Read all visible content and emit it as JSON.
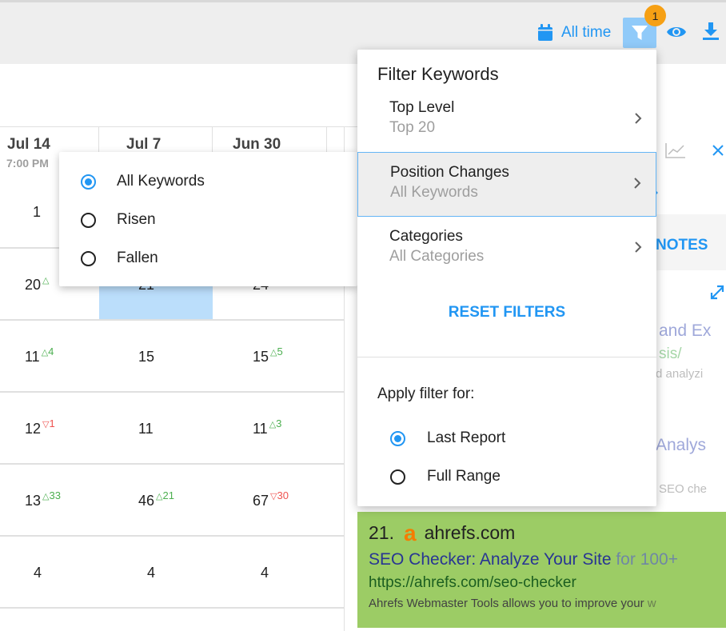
{
  "toolbar": {
    "date_range_label": "All time",
    "filter_badge_count": "1",
    "accent_color": "#2196f3",
    "badge_color": "#f6a014"
  },
  "table": {
    "columns": [
      {
        "date": "Jul 14",
        "time": "7:00 PM"
      },
      {
        "date": "Jul 7",
        "time": ""
      },
      {
        "date": "Jun 30",
        "time": ""
      }
    ],
    "rows": [
      [
        {
          "v": "1"
        },
        {
          "v": ""
        },
        {
          "v": ""
        }
      ],
      [
        {
          "v": "20",
          "chg": "",
          "dir": "up"
        },
        {
          "v": "21",
          "chg": "",
          "dir": "up"
        },
        {
          "v": "24",
          "chg": "",
          "dir": "up"
        }
      ],
      [
        {
          "v": "11",
          "chg": "4",
          "dir": "up"
        },
        {
          "v": "15",
          "chg": "",
          "dir": ""
        },
        {
          "v": "15",
          "chg": "5",
          "dir": "up"
        }
      ],
      [
        {
          "v": "12",
          "chg": "1",
          "dir": "down"
        },
        {
          "v": "11",
          "chg": "",
          "dir": ""
        },
        {
          "v": "11",
          "chg": "3",
          "dir": "up"
        }
      ],
      [
        {
          "v": "13",
          "chg": "33",
          "dir": "up"
        },
        {
          "v": "46",
          "chg": "21",
          "dir": "up"
        },
        {
          "v": "67",
          "chg": "30",
          "dir": "down"
        }
      ],
      [
        {
          "v": "4"
        },
        {
          "v": "4"
        },
        {
          "v": "4"
        }
      ]
    ]
  },
  "position_menu": {
    "options": [
      "All Keywords",
      "Risen",
      "Fallen"
    ],
    "selected": "All Keywords"
  },
  "filter_panel": {
    "title": "Filter Keywords",
    "items": [
      {
        "label": "Top Level",
        "value": "Top 20"
      },
      {
        "label": "Position Changes",
        "value": "All Keywords"
      },
      {
        "label": "Categories",
        "value": "All Categories"
      }
    ],
    "reset_label": "RESET FILTERS",
    "apply_label": "Apply filter for:",
    "apply_options": [
      "Last Report",
      "Full Range"
    ],
    "apply_selected": "Last Report"
  },
  "right_panel": {
    "notes_tab": "NOTES",
    "ghost_lines": [
      "and Ex",
      "sis/",
      "d analyzi",
      "Analys",
      "SEO che"
    ]
  },
  "serp_result": {
    "rank": "21.",
    "domain": "ahrefs.com",
    "logo_letter": "a",
    "title": "SEO Checker: Analyze Your Site",
    "title_faded": " for 100+",
    "url": "https://ahrefs.com/seo-checker",
    "description": "Ahrefs Webmaster Tools allows you to improve your",
    "description_faded": " w"
  }
}
